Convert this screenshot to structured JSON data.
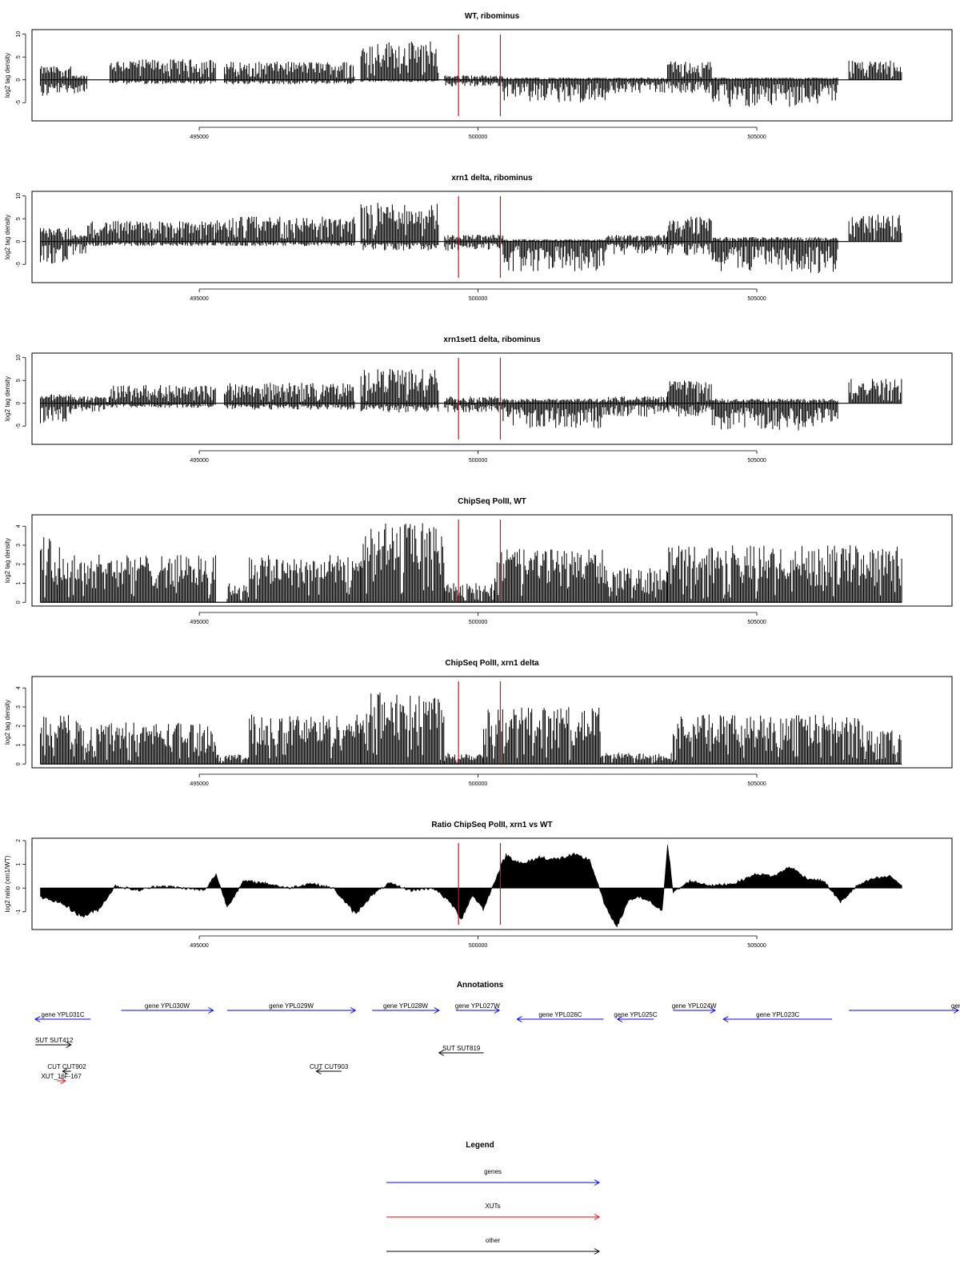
{
  "chart_data": [
    {
      "type": "bar",
      "title": "WT, ribominus",
      "ylabel": "log2 tag density",
      "ylim": [
        -9,
        11
      ],
      "yticks": [
        -5,
        0,
        5,
        10
      ],
      "xlim": [
        492000,
        508500
      ],
      "xticks": [
        "495000",
        "500000",
        "505000"
      ],
      "vlines": [
        499650,
        500400
      ],
      "segments": [
        {
          "x0": 492150,
          "x1": 492700,
          "top": 3,
          "bot": -4
        },
        {
          "x0": 492700,
          "x1": 493000,
          "top": 1,
          "bot": -3
        },
        {
          "x0": 493400,
          "x1": 495300,
          "top": 4.5,
          "bot": -1
        },
        {
          "x0": 495450,
          "x1": 497800,
          "top": 4,
          "bot": -1
        },
        {
          "x0": 497900,
          "x1": 499300,
          "top": 8.5,
          "bot": -0.5
        },
        {
          "x0": 499400,
          "x1": 500450,
          "top": 1,
          "bot": -1.5
        },
        {
          "x0": 500450,
          "x1": 502300,
          "top": 0.5,
          "bot": -5
        },
        {
          "x0": 502300,
          "x1": 503400,
          "top": 0.5,
          "bot": -3
        },
        {
          "x0": 503400,
          "x1": 504200,
          "top": 4,
          "bot": -3
        },
        {
          "x0": 504200,
          "x1": 506450,
          "top": 0.5,
          "bot": -6
        },
        {
          "x0": 506650,
          "x1": 507600,
          "top": 4.5,
          "bot": 0
        }
      ]
    },
    {
      "type": "bar",
      "title": "xrn1 delta, ribominus",
      "ylabel": "log2 tag density",
      "ylim": [
        -9,
        11
      ],
      "yticks": [
        -5,
        0,
        5,
        10
      ],
      "xlim": [
        492000,
        508500
      ],
      "xticks": [
        "495000",
        "500000",
        "505000"
      ],
      "vlines": [
        499650,
        500400
      ],
      "segments": [
        {
          "x0": 492150,
          "x1": 492700,
          "top": 3,
          "bot": -5
        },
        {
          "x0": 492700,
          "x1": 493000,
          "top": 1.5,
          "bot": -3
        },
        {
          "x0": 493000,
          "x1": 495300,
          "top": 4.5,
          "bot": -1
        },
        {
          "x0": 495300,
          "x1": 497800,
          "top": 5.5,
          "bot": -1
        },
        {
          "x0": 497900,
          "x1": 499300,
          "top": 8.5,
          "bot": -2
        },
        {
          "x0": 499400,
          "x1": 500450,
          "top": 1.5,
          "bot": -2
        },
        {
          "x0": 500450,
          "x1": 502300,
          "top": 0.5,
          "bot": -6.5
        },
        {
          "x0": 502300,
          "x1": 503400,
          "top": 1.5,
          "bot": -3
        },
        {
          "x0": 503400,
          "x1": 504200,
          "top": 5.5,
          "bot": -3
        },
        {
          "x0": 504200,
          "x1": 506450,
          "top": 1,
          "bot": -7
        },
        {
          "x0": 506650,
          "x1": 507600,
          "top": 6,
          "bot": 0
        }
      ]
    },
    {
      "type": "bar",
      "title": "xrn1set1 delta, ribominus",
      "ylabel": "log2 tag density",
      "ylim": [
        -9,
        11
      ],
      "yticks": [
        -5,
        0,
        5,
        10
      ],
      "xlim": [
        492000,
        508500
      ],
      "xticks": [
        "495000",
        "500000",
        "505000"
      ],
      "vlines": [
        499650,
        500400
      ],
      "segments": [
        {
          "x0": 492150,
          "x1": 492700,
          "top": 2,
          "bot": -4.5
        },
        {
          "x0": 492700,
          "x1": 493400,
          "top": 1.5,
          "bot": -2
        },
        {
          "x0": 493400,
          "x1": 495300,
          "top": 4,
          "bot": -1
        },
        {
          "x0": 495450,
          "x1": 497800,
          "top": 4.5,
          "bot": -1.5
        },
        {
          "x0": 497900,
          "x1": 499300,
          "top": 7.5,
          "bot": -2
        },
        {
          "x0": 499400,
          "x1": 500450,
          "top": 1.5,
          "bot": -2
        },
        {
          "x0": 500450,
          "x1": 502300,
          "top": 1,
          "bot": -5.5
        },
        {
          "x0": 502300,
          "x1": 503400,
          "top": 1.5,
          "bot": -3
        },
        {
          "x0": 503400,
          "x1": 504200,
          "top": 5,
          "bot": -3
        },
        {
          "x0": 504200,
          "x1": 506450,
          "top": 1,
          "bot": -6
        },
        {
          "x0": 506650,
          "x1": 507600,
          "top": 5.5,
          "bot": 0
        }
      ]
    },
    {
      "type": "bar",
      "title": "ChipSeq PolII, WT",
      "ylabel": "log2 tag density",
      "ylim": [
        -0.2,
        4.6
      ],
      "yticks": [
        0,
        1,
        2,
        3,
        4
      ],
      "xlim": [
        492000,
        508500
      ],
      "xticks": [
        "495000",
        "500000",
        "505000"
      ],
      "vlines": [
        499650,
        500400
      ],
      "segments": [
        {
          "x0": 492150,
          "x1": 492500,
          "top": 3.5,
          "bot": 0
        },
        {
          "x0": 492500,
          "x1": 495300,
          "top": 2.5,
          "bot": 0
        },
        {
          "x0": 495500,
          "x1": 495900,
          "top": 1,
          "bot": 0
        },
        {
          "x0": 495900,
          "x1": 497900,
          "top": 2.5,
          "bot": 0
        },
        {
          "x0": 497900,
          "x1": 499400,
          "top": 4.2,
          "bot": 0
        },
        {
          "x0": 499400,
          "x1": 500300,
          "top": 1,
          "bot": 0
        },
        {
          "x0": 500300,
          "x1": 502300,
          "top": 2.8,
          "bot": 0
        },
        {
          "x0": 502300,
          "x1": 503400,
          "top": 1.8,
          "bot": 0
        },
        {
          "x0": 503400,
          "x1": 507600,
          "top": 3,
          "bot": 0
        }
      ]
    },
    {
      "type": "bar",
      "title": "ChipSeq PolII, xrn1 delta",
      "ylabel": "log2 tag density",
      "ylim": [
        -0.2,
        4.6
      ],
      "yticks": [
        0,
        1,
        2,
        3,
        4
      ],
      "xlim": [
        492000,
        508500
      ],
      "xticks": [
        "495000",
        "500000",
        "505000"
      ],
      "vlines": [
        499650,
        500400
      ],
      "segments": [
        {
          "x0": 492150,
          "x1": 492800,
          "top": 2.6,
          "bot": 0
        },
        {
          "x0": 492800,
          "x1": 495300,
          "top": 2.2,
          "bot": 0
        },
        {
          "x0": 495300,
          "x1": 495900,
          "top": 0.5,
          "bot": 0
        },
        {
          "x0": 495900,
          "x1": 497900,
          "top": 2.6,
          "bot": 0
        },
        {
          "x0": 497900,
          "x1": 499400,
          "top": 3.8,
          "bot": 0
        },
        {
          "x0": 499400,
          "x1": 500100,
          "top": 0.6,
          "bot": 0
        },
        {
          "x0": 500100,
          "x1": 502200,
          "top": 3,
          "bot": 0
        },
        {
          "x0": 502200,
          "x1": 503500,
          "top": 0.6,
          "bot": 0
        },
        {
          "x0": 503500,
          "x1": 506900,
          "top": 2.6,
          "bot": 0
        },
        {
          "x0": 506900,
          "x1": 507600,
          "top": 1.8,
          "bot": 0
        }
      ]
    },
    {
      "type": "area",
      "title": "Ratio ChipSeq PolII, xrn1 vs WT",
      "ylabel": "log2 ratio (xrn1/WT)",
      "ylim": [
        -1.75,
        2.1
      ],
      "yticks": [
        -1,
        0,
        1,
        2
      ],
      "xlim": [
        492000,
        508500
      ],
      "xticks": [
        "495000",
        "500000",
        "505000"
      ],
      "vlines": [
        499650,
        500400
      ],
      "x": [
        492150,
        492500,
        492900,
        493200,
        493500,
        493900,
        494300,
        494700,
        495100,
        495300,
        495500,
        495800,
        496200,
        496600,
        497000,
        497400,
        497800,
        498100,
        498400,
        498800,
        499200,
        499500,
        499700,
        499900,
        500100,
        500300,
        500500,
        500800,
        501100,
        501400,
        501700,
        502000,
        502300,
        502500,
        502700,
        502900,
        503100,
        503300,
        503400,
        503500,
        503800,
        504200,
        504600,
        505000,
        505300,
        505600,
        505900,
        506200,
        506500,
        506800,
        507100,
        507400,
        507600
      ],
      "y": [
        -0.4,
        -0.6,
        -1.2,
        -0.9,
        0.1,
        -0.1,
        0.1,
        0,
        -0.1,
        0.6,
        -0.8,
        0.3,
        0.2,
        0,
        0.2,
        0,
        -1.1,
        -0.3,
        0.2,
        -0.1,
        0,
        -0.6,
        -1.3,
        -0.3,
        -0.9,
        0.3,
        1.4,
        1.0,
        1.3,
        1.2,
        1.4,
        1.2,
        -0.9,
        -1.6,
        -0.5,
        -0.4,
        -0.6,
        -1.0,
        1.9,
        -0.2,
        0.3,
        0.1,
        0.2,
        0.6,
        0.5,
        0.9,
        0.4,
        0.3,
        -0.6,
        0.1,
        0.4,
        0.5,
        0.1
      ]
    }
  ],
  "annotations": {
    "title": "Annotations",
    "features": [
      {
        "name": "gene YPL031C",
        "type": "gene",
        "strand": "-",
        "start": 492000,
        "end": 493050
      },
      {
        "name": "gene YPL030W",
        "type": "gene",
        "strand": "+",
        "start": 493600,
        "end": 495250
      },
      {
        "name": "gene YPL029W",
        "type": "gene",
        "strand": "+",
        "start": 495500,
        "end": 497800
      },
      {
        "name": "gene YPL028W",
        "type": "gene",
        "strand": "+",
        "start": 498100,
        "end": 499300
      },
      {
        "name": "gene YPL027W",
        "type": "gene",
        "strand": "+",
        "start": 499600,
        "end": 500380
      },
      {
        "name": "gene YPL026C",
        "type": "gene",
        "strand": "-",
        "start": 500700,
        "end": 502250
      },
      {
        "name": "gene YPL025C",
        "type": "gene",
        "strand": "-",
        "start": 502500,
        "end": 503150
      },
      {
        "name": "gene YPL024W",
        "type": "gene",
        "strand": "+",
        "start": 503500,
        "end": 504250
      },
      {
        "name": "gene YPL023C",
        "type": "gene",
        "strand": "-",
        "start": 504400,
        "end": 506350
      },
      {
        "name": "ger",
        "type": "gene",
        "strand": "+",
        "start": 506650,
        "end": 508800
      },
      {
        "name": "SUT SUT412",
        "type": "other",
        "strand": "+",
        "start": 492050,
        "end": 492700
      },
      {
        "name": "SUT SUT819",
        "type": "other",
        "strand": "-",
        "start": 499300,
        "end": 500100
      },
      {
        "name": "CUT CUT902",
        "type": "other",
        "strand": "-",
        "start": 492550,
        "end": 492700
      },
      {
        "name": "CUT CUT903",
        "type": "other",
        "strand": "-",
        "start": 497100,
        "end": 497550
      },
      {
        "name": "XUT_16F-167",
        "type": "xut",
        "strand": "+",
        "start": 492450,
        "end": 492600
      }
    ]
  },
  "legend": {
    "title": "Legend",
    "items": [
      {
        "label": "genes",
        "color": "#0000ff"
      },
      {
        "label": "XUTs",
        "color": "#ff0000"
      },
      {
        "label": "other",
        "color": "#000000"
      }
    ]
  },
  "colors": {
    "signal": "#000000",
    "vline": "#ff0000",
    "gene": "#0000ff",
    "xut": "#ff0000",
    "other": "#000000"
  }
}
